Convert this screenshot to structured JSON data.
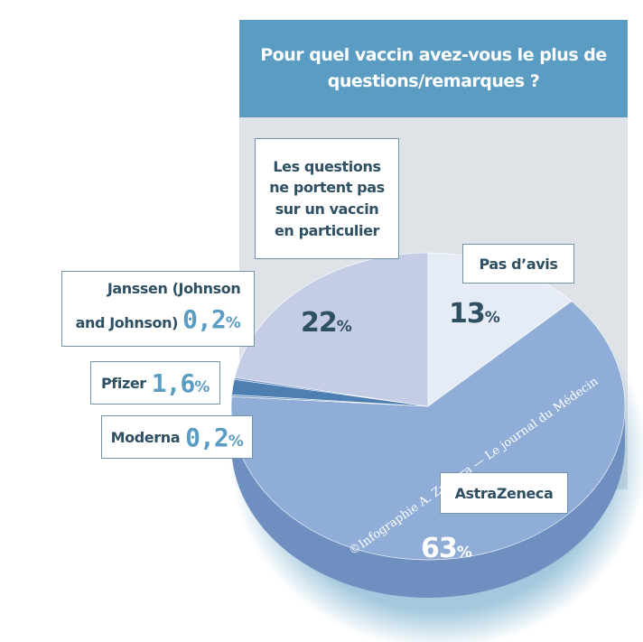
{
  "title": "Pour quel vaccin avez-vous le plus de questions/remarques ?",
  "credit": "©Infographie A. Zamora — Le journal du Médecin",
  "colors": {
    "title_band": "#5a9cc2",
    "panel": "#dfe3e8",
    "astrazeneca": "#8fadd6",
    "pas_avis": "#e6ecf6",
    "pas_specifique": "#c5cce6",
    "pfizer": "#4d7fb3",
    "moderna_janssen": "#6f95c6"
  },
  "labels": {
    "none": [
      "Les questions",
      "ne portent pas",
      "sur un vaccin",
      "en particulier"
    ],
    "pasavis": "Pas d’avis",
    "janssen_line1": "Janssen (Johnson",
    "janssen_line2": "and Johnson)",
    "janssen_value": "0,2",
    "pfizer": "Pfizer",
    "pfizer_value": "1,6",
    "moderna": "Moderna",
    "moderna_value": "0,2",
    "astra": "AstraZeneca",
    "none_value": "22",
    "pasavis_value": "13",
    "astra_value": "63",
    "percent": "%"
  },
  "chart_data": {
    "type": "pie",
    "title": "Pour quel vaccin avez-vous le plus de questions/remarques ?",
    "categories": [
      "Pas d’avis",
      "AstraZeneca",
      "Moderna",
      "Pfizer",
      "Janssen (Johnson and Johnson)",
      "Les questions ne portent pas sur un vaccin en particulier"
    ],
    "values": [
      13,
      63,
      0.2,
      1.6,
      0.2,
      22
    ],
    "unit": "%"
  }
}
